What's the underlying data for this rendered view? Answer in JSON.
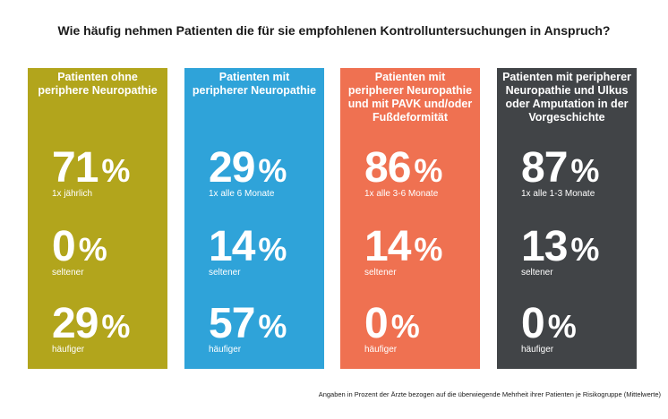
{
  "title": "Wie häufig nehmen Patienten die für sie empfohlenen Kontrolluntersuchungen in Anspruch?",
  "footnote": "Angaben in Prozent der Ärzte bezogen auf die überwiegende Mehrheit ihrer Patienten je Risikogruppe (Mittelwerte)",
  "colors": {
    "panel1": "#b2a51c",
    "panel2": "#2fa3d9",
    "panel3": "#ef7151",
    "panel4": "#414447"
  },
  "chart_data": {
    "type": "table",
    "title": "Wie häufig nehmen Patienten die für sie empfohlenen Kontrolluntersuchungen in Anspruch?",
    "unit": "%",
    "groups": [
      {
        "name": "Patienten ohne periphere Neuropathie",
        "name_lines": [
          "Patienten ohne",
          "periphere Neuropathie"
        ],
        "values": [
          {
            "value": 71,
            "label": "1x jährlich"
          },
          {
            "value": 0,
            "label": "seltener"
          },
          {
            "value": 29,
            "label": "häufiger"
          }
        ]
      },
      {
        "name": "Patienten mit peripherer Neuropathie",
        "name_lines": [
          "Patienten mit",
          "peripherer Neuropathie"
        ],
        "values": [
          {
            "value": 29,
            "label": "1x alle 6 Monate"
          },
          {
            "value": 14,
            "label": "seltener"
          },
          {
            "value": 57,
            "label": "häufiger"
          }
        ]
      },
      {
        "name": "Patienten mit peripherer Neuropathie und mit PAVK und/oder Fußdeformität",
        "name_lines": [
          "Patienten mit",
          "peripherer Neuropathie",
          "und mit PAVK und/oder",
          "Fußdeformität"
        ],
        "values": [
          {
            "value": 86,
            "label": "1x alle 3-6 Monate"
          },
          {
            "value": 14,
            "label": "seltener"
          },
          {
            "value": 0,
            "label": "häufiger"
          }
        ]
      },
      {
        "name": "Patienten mit peripherer Neuropathie und Ulkus oder Amputation in der Vorgeschichte",
        "name_lines": [
          "Patienten mit peripherer",
          "Neuropathie und Ulkus",
          "oder Amputation in der",
          "Vorgeschichte"
        ],
        "values": [
          {
            "value": 87,
            "label": "1x alle 1-3 Monate"
          },
          {
            "value": 13,
            "label": "seltener"
          },
          {
            "value": 0,
            "label": "häufiger"
          }
        ]
      }
    ]
  }
}
